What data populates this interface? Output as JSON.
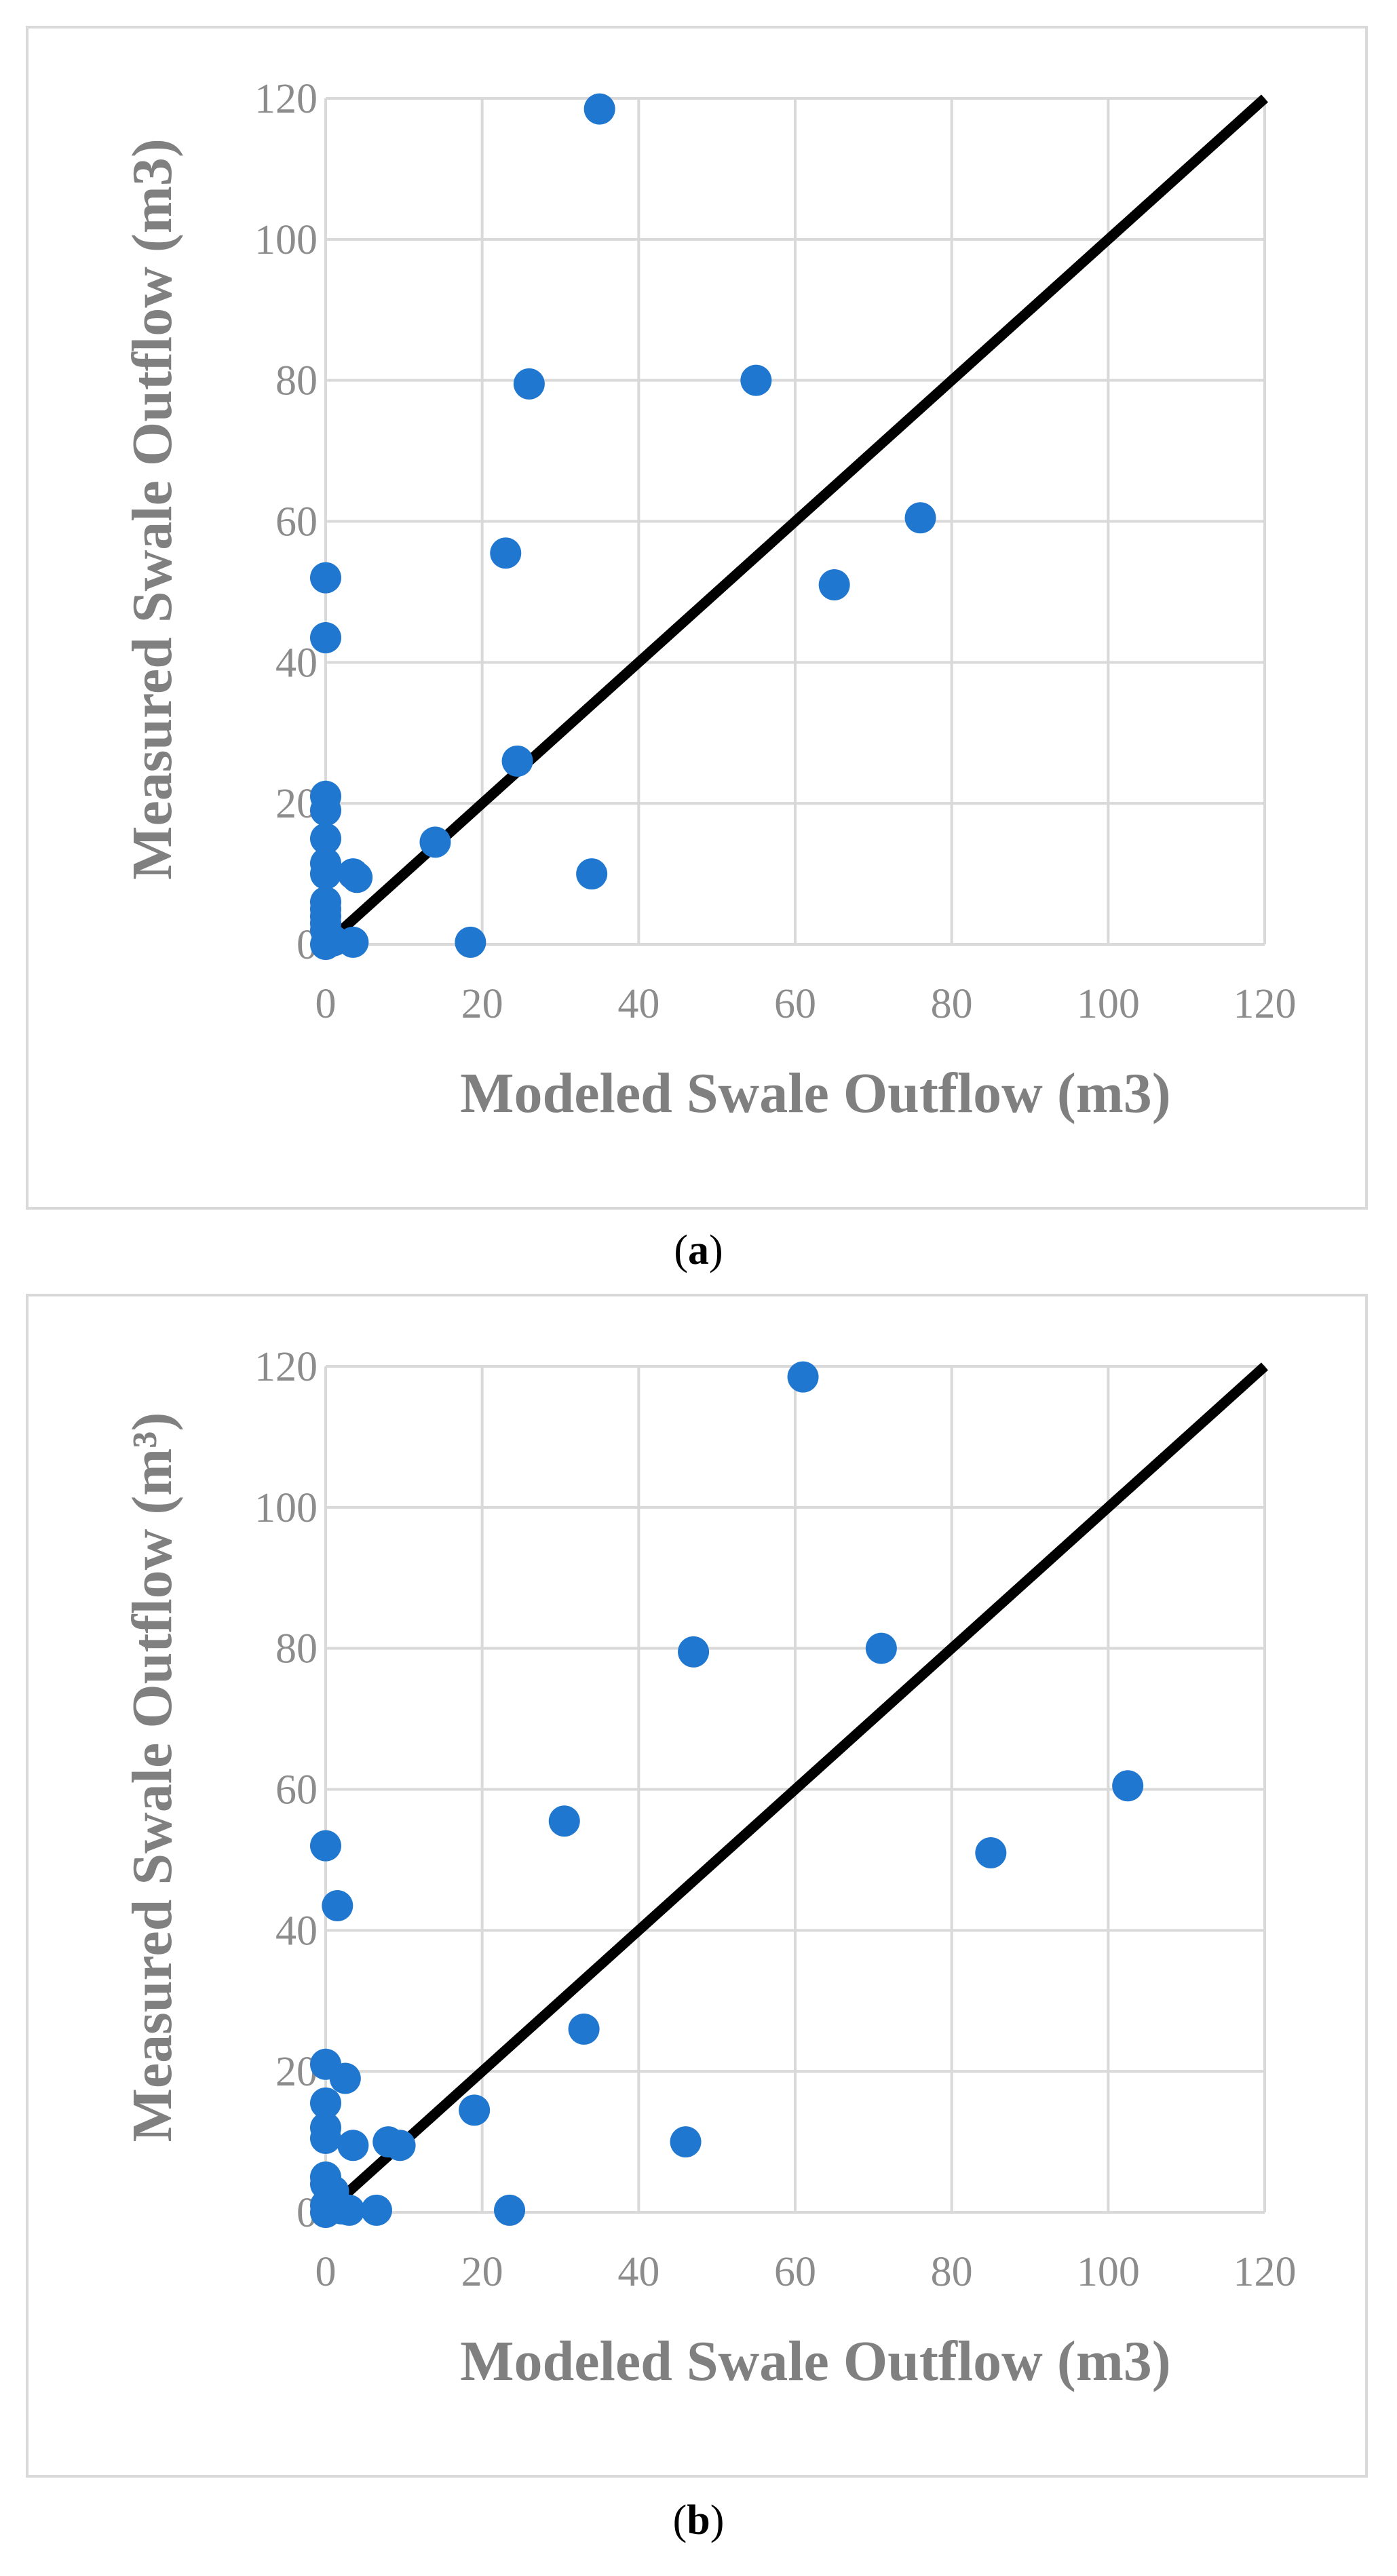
{
  "chart_data": [
    {
      "type": "scatter",
      "caption": "a",
      "xlabel": "Modeled Swale Outflow (m3)",
      "ylabel": "Measured Swale Outflow (m3)",
      "xlim": [
        0,
        120
      ],
      "ylim": [
        0,
        120
      ],
      "xticks": [
        "0",
        "20",
        "40",
        "60",
        "80",
        "100",
        "120"
      ],
      "yticks": [
        "0",
        "20",
        "40",
        "60",
        "80",
        "100",
        "120"
      ],
      "grid": true,
      "reference_line": {
        "from": [
          0,
          0
        ],
        "to": [
          120,
          120
        ],
        "label": "1:1 line"
      },
      "marker_color": "#1f77d0",
      "line_color": "#000000",
      "points": [
        [
          35,
          118.5
        ],
        [
          55,
          80
        ],
        [
          26,
          79.5
        ],
        [
          76,
          60.5
        ],
        [
          23,
          55.5
        ],
        [
          65,
          51
        ],
        [
          0,
          52
        ],
        [
          0,
          43.5
        ],
        [
          24.5,
          26
        ],
        [
          0,
          21
        ],
        [
          0,
          19
        ],
        [
          14,
          14.5
        ],
        [
          0,
          15
        ],
        [
          0,
          11.5
        ],
        [
          0,
          10
        ],
        [
          3.5,
          10
        ],
        [
          4,
          9.5
        ],
        [
          34,
          10
        ],
        [
          0,
          6
        ],
        [
          0,
          5
        ],
        [
          0,
          4
        ],
        [
          0,
          3
        ],
        [
          0,
          2
        ],
        [
          0.5,
          1
        ],
        [
          1,
          0.5
        ],
        [
          0,
          0
        ],
        [
          3.5,
          0.3
        ],
        [
          18.5,
          0.3
        ]
      ]
    },
    {
      "type": "scatter",
      "caption": "b",
      "xlabel": "Modeled Swale Outflow (m3)",
      "ylabel": "Measured Swale Outflow (m³)",
      "xlim": [
        0,
        120
      ],
      "ylim": [
        0,
        120
      ],
      "xticks": [
        "0",
        "20",
        "40",
        "60",
        "80",
        "100",
        "120"
      ],
      "yticks": [
        "0",
        "20",
        "40",
        "60",
        "80",
        "100",
        "120"
      ],
      "grid": true,
      "reference_line": {
        "from": [
          0,
          0
        ],
        "to": [
          120,
          120
        ],
        "label": "1:1 line"
      },
      "marker_color": "#1f77d0",
      "line_color": "#000000",
      "points": [
        [
          61,
          118.5
        ],
        [
          47,
          79.5
        ],
        [
          71,
          80
        ],
        [
          102.5,
          60.5
        ],
        [
          30.5,
          55.5
        ],
        [
          85,
          51
        ],
        [
          0,
          52
        ],
        [
          1.5,
          43.5
        ],
        [
          33,
          26
        ],
        [
          0,
          21
        ],
        [
          2.5,
          19
        ],
        [
          0,
          15.5
        ],
        [
          19,
          14.5
        ],
        [
          0,
          12
        ],
        [
          0,
          10.5
        ],
        [
          3.5,
          9.5
        ],
        [
          8,
          10
        ],
        [
          9.5,
          9.5
        ],
        [
          46,
          10
        ],
        [
          0,
          5
        ],
        [
          0,
          4
        ],
        [
          1,
          3
        ],
        [
          0.5,
          2
        ],
        [
          0,
          1
        ],
        [
          0,
          0
        ],
        [
          2,
          0.5
        ],
        [
          3,
          0.3
        ],
        [
          6.5,
          0.3
        ],
        [
          23.5,
          0.3
        ]
      ]
    }
  ]
}
